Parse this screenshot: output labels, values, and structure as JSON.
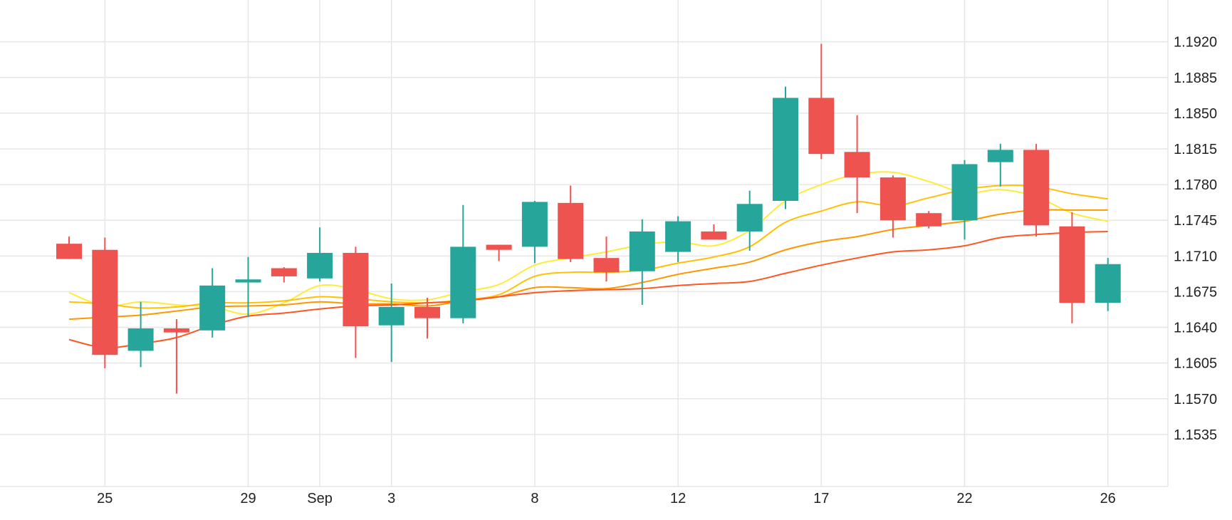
{
  "chart_data": {
    "type": "candlestick",
    "colors": {
      "up": "#26a69a",
      "down": "#ef5350",
      "grid": "#e6e6e6",
      "axis_text": "#222222",
      "ma_lines": [
        "#ffeb3b",
        "#ffc107",
        "#ff9800",
        "#ff5722"
      ]
    },
    "y_axis": {
      "position": "right",
      "ticks": [
        "1.1535",
        "1.1570",
        "1.1605",
        "1.1640",
        "1.1675",
        "1.1710",
        "1.1745",
        "1.1780",
        "1.1815",
        "1.1850",
        "1.1885",
        "1.1920"
      ],
      "range": [
        1.15,
        1.194
      ]
    },
    "x_axis": {
      "ticks": [
        {
          "label": "25",
          "slot": 1
        },
        {
          "label": "29",
          "slot": 5
        },
        {
          "label": "Sep",
          "slot": 7
        },
        {
          "label": "3",
          "slot": 9
        },
        {
          "label": "8",
          "slot": 13
        },
        {
          "label": "12",
          "slot": 17
        },
        {
          "label": "17",
          "slot": 21
        },
        {
          "label": "22",
          "slot": 25
        },
        {
          "label": "26",
          "slot": 29
        }
      ],
      "slots": 30
    },
    "candles": [
      {
        "slot": 0,
        "open": 1.1722,
        "high": 1.1729,
        "low": 1.1707,
        "close": 1.1707
      },
      {
        "slot": 1,
        "open": 1.1716,
        "high": 1.1728,
        "low": 1.16,
        "close": 1.1613
      },
      {
        "slot": 2,
        "open": 1.1617,
        "high": 1.1665,
        "low": 1.1601,
        "close": 1.1639
      },
      {
        "slot": 3,
        "open": 1.1639,
        "high": 1.1648,
        "low": 1.1575,
        "close": 1.1635
      },
      {
        "slot": 4,
        "open": 1.1637,
        "high": 1.1698,
        "low": 1.163,
        "close": 1.1681
      },
      {
        "slot": 5,
        "open": 1.1684,
        "high": 1.1709,
        "low": 1.165,
        "close": 1.1687
      },
      {
        "slot": 6,
        "open": 1.1698,
        "high": 1.1699,
        "low": 1.1684,
        "close": 1.169
      },
      {
        "slot": 7,
        "open": 1.1688,
        "high": 1.1738,
        "low": 1.1685,
        "close": 1.1713
      },
      {
        "slot": 8,
        "open": 1.1713,
        "high": 1.1719,
        "low": 1.161,
        "close": 1.1641
      },
      {
        "slot": 9,
        "open": 1.1642,
        "high": 1.1683,
        "low": 1.1606,
        "close": 1.166
      },
      {
        "slot": 10,
        "open": 1.166,
        "high": 1.1669,
        "low": 1.1629,
        "close": 1.1649
      },
      {
        "slot": 11,
        "open": 1.1649,
        "high": 1.176,
        "low": 1.1644,
        "close": 1.1719
      },
      {
        "slot": 12,
        "open": 1.1721,
        "high": 1.1721,
        "low": 1.1705,
        "close": 1.1716
      },
      {
        "slot": 13,
        "open": 1.1719,
        "high": 1.1764,
        "low": 1.1703,
        "close": 1.1763
      },
      {
        "slot": 14,
        "open": 1.1762,
        "high": 1.1779,
        "low": 1.1704,
        "close": 1.1707
      },
      {
        "slot": 15,
        "open": 1.1708,
        "high": 1.1729,
        "low": 1.1685,
        "close": 1.1694
      },
      {
        "slot": 16,
        "open": 1.1695,
        "high": 1.1746,
        "low": 1.1662,
        "close": 1.1734
      },
      {
        "slot": 17,
        "open": 1.1714,
        "high": 1.1749,
        "low": 1.1704,
        "close": 1.1744
      },
      {
        "slot": 18,
        "open": 1.1734,
        "high": 1.1741,
        "low": 1.1728,
        "close": 1.1726
      },
      {
        "slot": 19,
        "open": 1.1734,
        "high": 1.1774,
        "low": 1.1715,
        "close": 1.1761
      },
      {
        "slot": 20,
        "open": 1.1764,
        "high": 1.1876,
        "low": 1.1756,
        "close": 1.1865
      },
      {
        "slot": 21,
        "open": 1.1865,
        "high": 1.1918,
        "low": 1.1805,
        "close": 1.181
      },
      {
        "slot": 22,
        "open": 1.1812,
        "high": 1.1848,
        "low": 1.1752,
        "close": 1.1787
      },
      {
        "slot": 23,
        "open": 1.1787,
        "high": 1.1789,
        "low": 1.1728,
        "close": 1.1745
      },
      {
        "slot": 24,
        "open": 1.1752,
        "high": 1.1754,
        "low": 1.1737,
        "close": 1.1739
      },
      {
        "slot": 25,
        "open": 1.1745,
        "high": 1.1804,
        "low": 1.1726,
        "close": 1.18
      },
      {
        "slot": 26,
        "open": 1.1802,
        "high": 1.182,
        "low": 1.1778,
        "close": 1.1814
      },
      {
        "slot": 27,
        "open": 1.1814,
        "high": 1.182,
        "low": 1.1729,
        "close": 1.174
      },
      {
        "slot": 28,
        "open": 1.1739,
        "high": 1.1753,
        "low": 1.1644,
        "close": 1.1664
      },
      {
        "slot": 29,
        "open": 1.1664,
        "high": 1.1708,
        "low": 1.1656,
        "close": 1.1702
      }
    ],
    "series": [
      {
        "type": "line",
        "color": "#ffeb3b",
        "x": [
          0,
          1,
          2,
          3,
          4,
          5,
          6,
          7,
          8,
          9,
          10,
          11,
          12,
          13,
          14,
          15,
          16,
          17,
          18,
          19,
          20,
          21,
          22,
          23,
          24,
          25,
          26,
          27,
          28,
          29
        ],
        "values": [
          1.1674,
          1.1661,
          1.1665,
          1.1662,
          1.166,
          1.1653,
          1.1664,
          1.1681,
          1.1677,
          1.1668,
          1.1667,
          1.1675,
          1.1682,
          1.1701,
          1.1708,
          1.1714,
          1.1721,
          1.1724,
          1.172,
          1.1735,
          1.1764,
          1.178,
          1.179,
          1.1792,
          1.1783,
          1.1772,
          1.1775,
          1.1768,
          1.1752,
          1.1744
        ]
      },
      {
        "type": "line",
        "color": "#ffc107",
        "x": [
          0,
          1,
          2,
          3,
          4,
          5,
          6,
          7,
          8,
          9,
          10,
          11,
          12,
          13,
          14,
          15,
          16,
          17,
          18,
          19,
          20,
          21,
          22,
          23,
          24,
          25,
          26,
          27,
          28,
          29
        ],
        "values": [
          1.1665,
          1.1663,
          1.1659,
          1.166,
          1.1664,
          1.1664,
          1.1666,
          1.167,
          1.1668,
          1.1665,
          1.1664,
          1.1667,
          1.1672,
          1.169,
          1.1694,
          1.1694,
          1.1696,
          1.1703,
          1.1709,
          1.1719,
          1.1743,
          1.1754,
          1.1763,
          1.1759,
          1.1767,
          1.1775,
          1.1779,
          1.1778,
          1.1771,
          1.1766
        ]
      },
      {
        "type": "line",
        "color": "#ff9800",
        "x": [
          0,
          1,
          2,
          3,
          4,
          5,
          6,
          7,
          8,
          9,
          10,
          11,
          12,
          13,
          14,
          15,
          16,
          17,
          18,
          19,
          20,
          21,
          22,
          23,
          24,
          25,
          26,
          27,
          28,
          29
        ],
        "values": [
          1.1648,
          1.165,
          1.1652,
          1.1656,
          1.166,
          1.1661,
          1.1662,
          1.1665,
          1.1663,
          1.1663,
          1.1661,
          1.1666,
          1.167,
          1.1679,
          1.1679,
          1.1678,
          1.1684,
          1.1692,
          1.1698,
          1.1704,
          1.1716,
          1.1724,
          1.1729,
          1.1736,
          1.174,
          1.1744,
          1.1751,
          1.1755,
          1.1755,
          1.1755
        ]
      },
      {
        "type": "line",
        "color": "#ff5722",
        "x": [
          0,
          1,
          2,
          3,
          4,
          5,
          6,
          7,
          8,
          9,
          10,
          11,
          12,
          13,
          14,
          15,
          16,
          17,
          18,
          19,
          20,
          21,
          22,
          23,
          24,
          25,
          26,
          27,
          28,
          29
        ],
        "values": [
          1.1628,
          1.162,
          1.1624,
          1.163,
          1.1642,
          1.1651,
          1.1654,
          1.1658,
          1.1661,
          1.1662,
          1.1664,
          1.1666,
          1.167,
          1.1674,
          1.1676,
          1.1677,
          1.1678,
          1.1681,
          1.1683,
          1.1685,
          1.1693,
          1.1701,
          1.1708,
          1.1714,
          1.1716,
          1.172,
          1.1728,
          1.1731,
          1.1733,
          1.1734
        ]
      }
    ]
  }
}
